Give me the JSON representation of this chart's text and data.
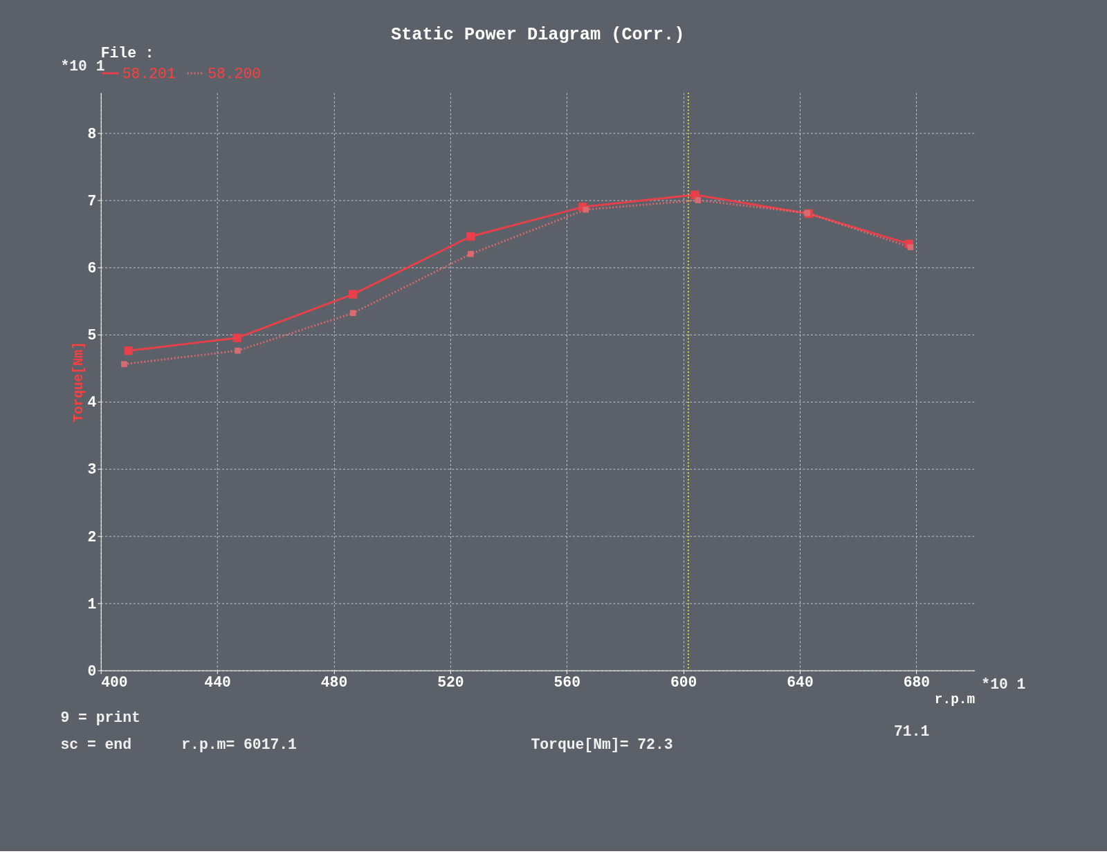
{
  "chart_data": {
    "type": "line",
    "title": "Static Power Diagram  (Corr.)",
    "xlabel": "r.p.m",
    "ylabel": "Torque[Nm]",
    "legend_title": "File :",
    "legend": "top",
    "xlim": [
      400,
      700
    ],
    "xticks": [
      400,
      440,
      480,
      520,
      560,
      600,
      640,
      680
    ],
    "ylim": [
      0,
      8.6
    ],
    "yticks": [
      0,
      1,
      2,
      3,
      4,
      5,
      6,
      7,
      8
    ],
    "grid": true,
    "marker": "square",
    "series": [
      {
        "name": "58.201",
        "color": "#e8404a",
        "line_style": "solid",
        "x": [
          409.5,
          446.8,
          486.6,
          527,
          565.5,
          604,
          643,
          677.5
        ],
        "values": [
          4.76,
          4.95,
          5.6,
          6.46,
          6.9,
          7.08,
          6.8,
          6.35
        ]
      },
      {
        "name": "58.200",
        "color": "#d86a70",
        "line_style": "dotted",
        "x": [
          408,
          447,
          486.6,
          527,
          566.5,
          605,
          642.5,
          678
        ],
        "values": [
          4.56,
          4.76,
          5.32,
          6.2,
          6.86,
          7.0,
          6.81,
          6.3
        ]
      }
    ],
    "ref_lines": [
      {
        "axis": "x",
        "value": 601.71,
        "label": null,
        "color": "#e0e040",
        "line_style": "dotted"
      }
    ],
    "annotations": [
      "*10 1",
      "*10 1",
      "9 = print",
      "sc = end",
      "r.p.m= 6017.1",
      "Torque[Nm]= 72.3",
      "71.1"
    ]
  }
}
